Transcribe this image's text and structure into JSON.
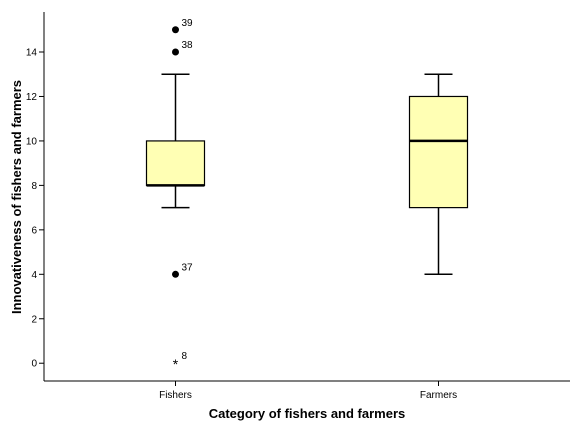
{
  "chart_data": {
    "type": "boxplot",
    "xlabel": "Category of fishers and farmers",
    "ylabel": "Innovativeness of fishers and farmers",
    "ylim": [
      -0.8,
      15.8
    ],
    "yticks": [
      0,
      2,
      4,
      6,
      8,
      10,
      12,
      14
    ],
    "box_color": "#ffffb4",
    "groups": [
      {
        "category": "Fishers",
        "whisker_low": 7,
        "q1": 8,
        "median": 8,
        "q3": 10,
        "whisker_high": 13,
        "outliers": [
          {
            "value": 15,
            "label": "39",
            "marker": "circle"
          },
          {
            "value": 14,
            "label": "38",
            "marker": "circle"
          },
          {
            "value": 4,
            "label": "37",
            "marker": "circle"
          },
          {
            "value": 0,
            "label": "8",
            "marker": "star"
          }
        ]
      },
      {
        "category": "Farmers",
        "whisker_low": 4,
        "q1": 7,
        "median": 10,
        "q3": 12,
        "whisker_high": 13,
        "outliers": []
      }
    ]
  }
}
